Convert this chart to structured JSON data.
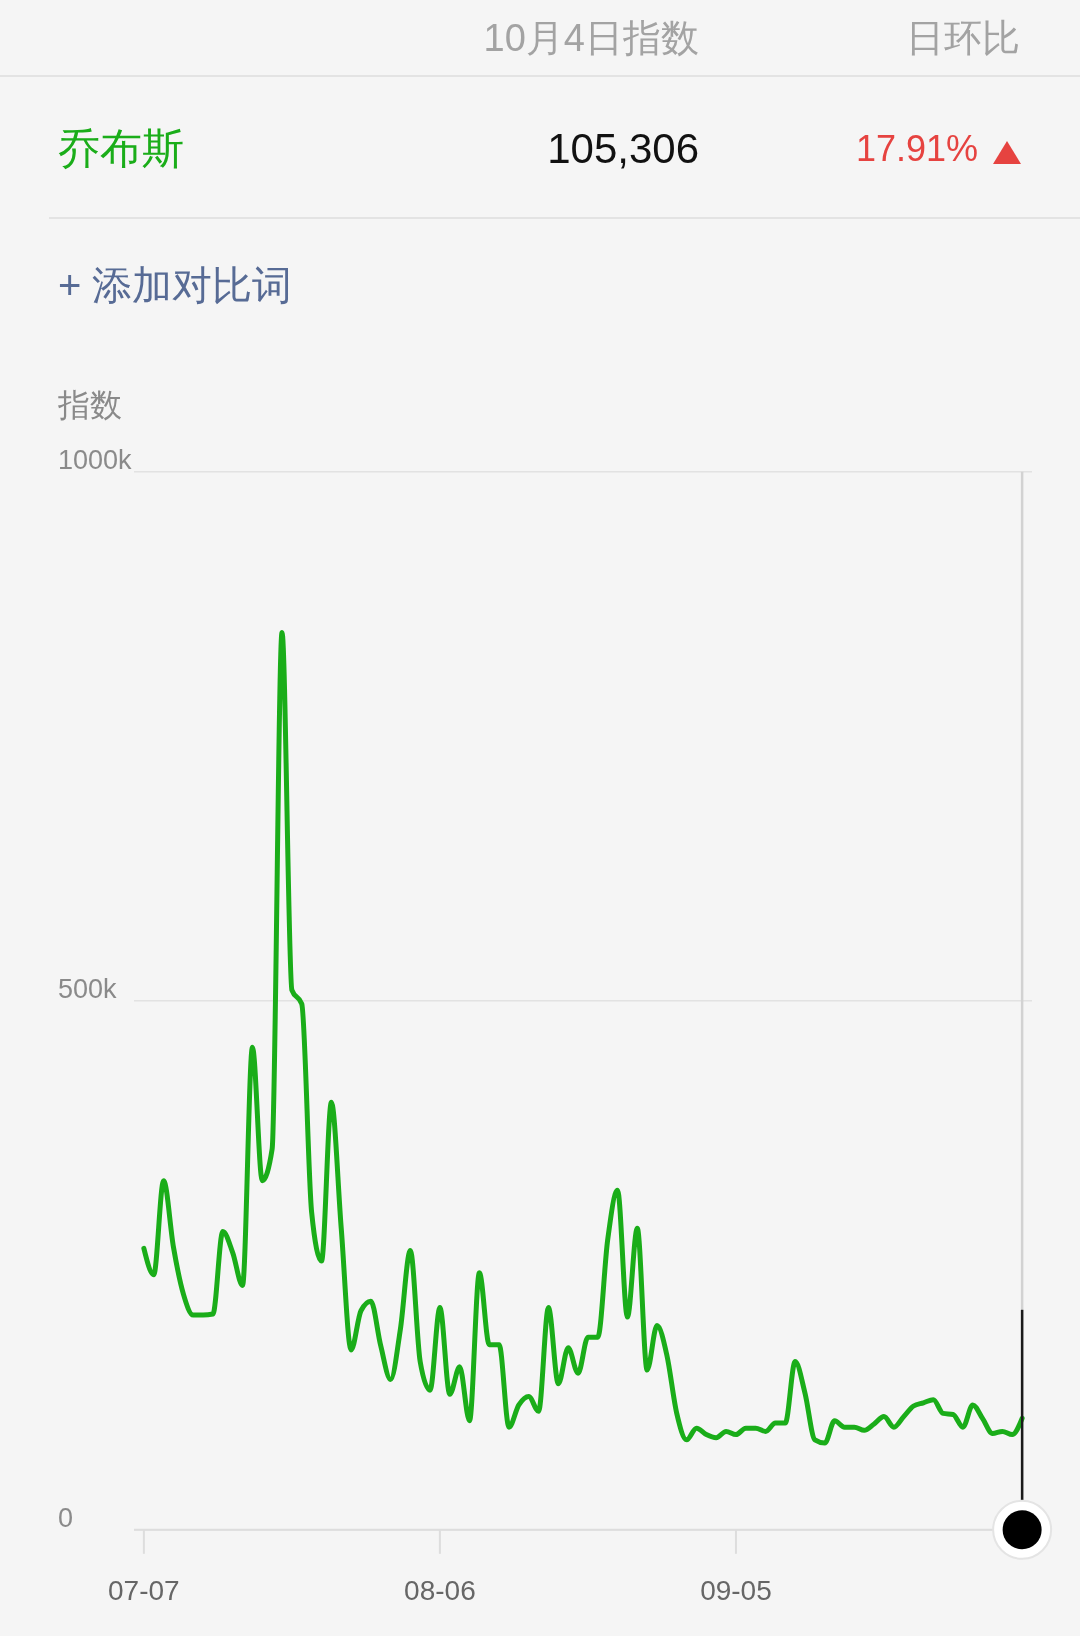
{
  "chart_data": {
    "type": "line",
    "ylabel": "指数",
    "annotations": [
      "10月4日指数",
      "日环比",
      "105,306",
      "17.91%",
      "+ 添加对比词"
    ],
    "x": [
      "--07-07",
      "--07-08",
      "--07-09",
      "--07-10",
      "--07-11",
      "--07-12",
      "--07-13",
      "--07-14",
      "--07-15",
      "--07-16",
      "--07-17",
      "--07-18",
      "--07-19",
      "--07-20",
      "--07-21",
      "--07-22",
      "--07-23",
      "--07-24",
      "--07-25",
      "--07-26",
      "--07-27",
      "--07-28",
      "--07-29",
      "--07-30",
      "--07-31",
      "--08-01",
      "--08-02",
      "--08-03",
      "--08-04",
      "--08-05",
      "--08-06",
      "--08-07",
      "--08-08",
      "--08-09",
      "--08-10",
      "--08-11",
      "--08-12",
      "--08-13",
      "--08-14",
      "--08-15",
      "--08-16",
      "--08-17",
      "--08-18",
      "--08-19",
      "--08-20",
      "--08-21",
      "--08-22",
      "--08-23",
      "--08-24",
      "--08-25",
      "--08-26",
      "--08-27",
      "--08-28",
      "--08-29",
      "--08-30",
      "--08-31",
      "--09-01",
      "--09-02",
      "--09-03",
      "--09-04",
      "--09-05",
      "--09-06",
      "--09-07",
      "--09-08",
      "--09-09",
      "--09-10",
      "--09-11",
      "--09-12",
      "--09-13",
      "--09-14",
      "--09-15",
      "--09-16",
      "--09-17",
      "--09-18",
      "--09-19",
      "--09-20",
      "--09-21",
      "--09-22",
      "--09-23",
      "--09-24",
      "--09-25",
      "--09-26",
      "--09-27",
      "--09-28",
      "--09-29",
      "--09-30",
      "--10-01",
      "--10-02",
      "--10-03",
      "--10-04"
    ],
    "series": [
      {
        "name": "乔布斯",
        "color": "#1aad19",
        "values": [
          266000,
          241000,
          330000,
          267000,
          223000,
          203000,
          203000,
          204000,
          282000,
          262000,
          231000,
          456000,
          330000,
          360000,
          848000,
          510000,
          497000,
          300000,
          254000,
          404000,
          285000,
          170000,
          207000,
          216000,
          174000,
          142000,
          190000,
          264000,
          159000,
          132000,
          210000,
          128000,
          154000,
          103000,
          243000,
          175000,
          175000,
          97000,
          118000,
          126000,
          112000,
          210000,
          138000,
          172000,
          148000,
          182000,
          182000,
          274000,
          321000,
          201000,
          285000,
          151000,
          193000,
          165000,
          110000,
          85000,
          96000,
          90000,
          87000,
          93000,
          90000,
          96000,
          96000,
          93000,
          101000,
          101000,
          159000,
          129000,
          85000,
          82000,
          103000,
          97000,
          97000,
          94000,
          100000,
          107000,
          97000,
          107000,
          117000,
          120000,
          123000,
          110000,
          109000,
          97000,
          118000,
          105000,
          91000,
          93000,
          90000,
          105306
        ]
      }
    ],
    "xlim": [
      "--07-06",
      "--10-05"
    ],
    "ylim": [
      0,
      1000000
    ],
    "xticks": [
      {
        "value": "--07-07",
        "label": "07-07"
      },
      {
        "value": "--08-06",
        "label": "08-06"
      },
      {
        "value": "--09-05",
        "label": "09-05"
      }
    ],
    "yticks": [
      {
        "value": 0,
        "label": "0"
      },
      {
        "value": 500000,
        "label": "500k"
      },
      {
        "value": 1000000,
        "label": "1000k"
      }
    ],
    "grid": "y",
    "ref_lines": [
      {
        "axis": "x",
        "value": "--10-04",
        "color": "#d2d2d2"
      }
    ]
  }
}
